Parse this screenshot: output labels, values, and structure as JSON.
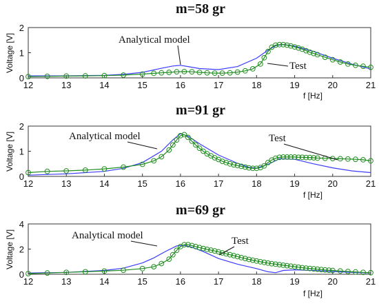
{
  "chart_data": [
    {
      "type": "line",
      "title": "m=58 gr",
      "xlabel": "f [Hz]",
      "ylabel": "Voltage [V]",
      "xlim": [
        12,
        21
      ],
      "ylim": [
        0,
        2
      ],
      "xticks": [
        12,
        13,
        14,
        15,
        16,
        17,
        18,
        19,
        20,
        21
      ],
      "yticks": [
        0,
        1,
        2
      ],
      "grid": false,
      "annotations": [
        {
          "text": "Analytical model",
          "series": "Analytical model",
          "at": [
            16.0,
            0.5
          ]
        },
        {
          "text": "Test",
          "series": "Test",
          "at": [
            18.5,
            0.45
          ]
        }
      ],
      "series": [
        {
          "name": "Analytical model",
          "color": "#3b3bff",
          "marker": "none",
          "x": [
            12.0,
            13.0,
            14.0,
            14.5,
            15.0,
            15.5,
            15.8,
            16.0,
            16.2,
            16.5,
            17.0,
            17.5,
            18.0,
            18.3,
            18.5,
            18.7,
            19.0,
            19.5,
            20.0,
            20.5,
            21.0
          ],
          "y": [
            0.08,
            0.08,
            0.1,
            0.14,
            0.22,
            0.38,
            0.47,
            0.5,
            0.45,
            0.37,
            0.33,
            0.45,
            0.78,
            1.1,
            1.28,
            1.33,
            1.26,
            1.05,
            0.78,
            0.55,
            0.35
          ]
        },
        {
          "name": "Test",
          "color": "#1f8c1f",
          "marker": "circle",
          "x": [
            12.0,
            12.5,
            13.0,
            13.5,
            14.0,
            14.5,
            15.0,
            15.3,
            15.5,
            15.7,
            15.9,
            16.1,
            16.3,
            16.5,
            16.7,
            16.9,
            17.1,
            17.3,
            17.5,
            17.7,
            17.9,
            18.1,
            18.2,
            18.3,
            18.4,
            18.5,
            18.6,
            18.7,
            18.8,
            18.9,
            19.0,
            19.1,
            19.2,
            19.3,
            19.4,
            19.5,
            19.6,
            19.8,
            20.0,
            20.2,
            20.4,
            20.6,
            20.8,
            21.0
          ],
          "y": [
            0.05,
            0.06,
            0.07,
            0.08,
            0.09,
            0.11,
            0.15,
            0.18,
            0.2,
            0.22,
            0.24,
            0.25,
            0.24,
            0.22,
            0.2,
            0.19,
            0.19,
            0.2,
            0.23,
            0.28,
            0.36,
            0.55,
            0.8,
            1.05,
            1.22,
            1.3,
            1.32,
            1.32,
            1.3,
            1.27,
            1.23,
            1.19,
            1.14,
            1.08,
            1.02,
            0.97,
            0.92,
            0.82,
            0.72,
            0.63,
            0.55,
            0.5,
            0.46,
            0.42
          ]
        }
      ]
    },
    {
      "type": "line",
      "title": "m=91 gr",
      "xlabel": "f [Hz]",
      "ylabel": "Voltage [V]",
      "xlim": [
        12,
        21
      ],
      "ylim": [
        0,
        2
      ],
      "xticks": [
        12,
        13,
        14,
        15,
        16,
        17,
        18,
        19,
        20,
        21
      ],
      "yticks": [
        0,
        1,
        2
      ],
      "grid": false,
      "annotations": [
        {
          "text": "Analytical model",
          "series": "Analytical model",
          "at": [
            15.6,
            1.2
          ]
        },
        {
          "text": "Test",
          "series": "Test",
          "at": [
            19.7,
            0.7
          ]
        }
      ],
      "series": [
        {
          "name": "Analytical model",
          "color": "#3b3bff",
          "marker": "none",
          "x": [
            12.0,
            13.0,
            14.0,
            14.5,
            15.0,
            15.5,
            15.8,
            16.0,
            16.2,
            16.5,
            17.0,
            17.5,
            17.8,
            18.0,
            18.3,
            18.6,
            19.0,
            19.5,
            20.0,
            20.5,
            21.0
          ],
          "y": [
            0.05,
            0.1,
            0.2,
            0.32,
            0.55,
            1.0,
            1.45,
            1.7,
            1.6,
            1.3,
            0.85,
            0.52,
            0.36,
            0.33,
            0.48,
            0.7,
            0.68,
            0.5,
            0.34,
            0.22,
            0.15
          ]
        },
        {
          "name": "Test",
          "color": "#1f8c1f",
          "marker": "circle",
          "x": [
            12.0,
            12.5,
            13.0,
            13.5,
            14.0,
            14.5,
            15.0,
            15.3,
            15.5,
            15.7,
            15.8,
            15.9,
            16.0,
            16.1,
            16.2,
            16.3,
            16.4,
            16.5,
            16.6,
            16.7,
            16.8,
            16.9,
            17.0,
            17.1,
            17.2,
            17.3,
            17.4,
            17.5,
            17.6,
            17.7,
            17.8,
            17.9,
            18.0,
            18.1,
            18.2,
            18.3,
            18.4,
            18.5,
            18.6,
            18.7,
            18.8,
            18.9,
            19.0,
            19.1,
            19.2,
            19.3,
            19.4,
            19.5,
            19.6,
            19.8,
            20.0,
            20.2,
            20.4,
            20.6,
            20.8,
            21.0
          ],
          "y": [
            0.15,
            0.2,
            0.22,
            0.25,
            0.3,
            0.37,
            0.48,
            0.62,
            0.78,
            1.05,
            1.25,
            1.45,
            1.62,
            1.66,
            1.55,
            1.4,
            1.25,
            1.12,
            1.0,
            0.9,
            0.82,
            0.74,
            0.67,
            0.6,
            0.55,
            0.5,
            0.46,
            0.43,
            0.4,
            0.37,
            0.34,
            0.32,
            0.32,
            0.35,
            0.42,
            0.55,
            0.65,
            0.72,
            0.76,
            0.77,
            0.77,
            0.77,
            0.77,
            0.76,
            0.76,
            0.75,
            0.75,
            0.74,
            0.73,
            0.72,
            0.71,
            0.7,
            0.69,
            0.68,
            0.66,
            0.62
          ]
        }
      ]
    },
    {
      "type": "line",
      "title": "m=69 gr",
      "xlabel": "f [Hz]",
      "ylabel": "Voltage [V]",
      "xlim": [
        12,
        21
      ],
      "ylim": [
        0,
        4
      ],
      "xticks": [
        12,
        13,
        14,
        15,
        16,
        17,
        18,
        19,
        20,
        21
      ],
      "yticks": [
        0,
        2,
        4
      ],
      "grid": false,
      "annotations": [
        {
          "text": "Analytical model",
          "series": "Analytical model",
          "at": [
            15.7,
            2.0
          ]
        },
        {
          "text": "Test",
          "series": "Test",
          "at": [
            17.7,
            1.4
          ]
        }
      ],
      "series": [
        {
          "name": "Analytical model",
          "color": "#3b3bff",
          "marker": "none",
          "x": [
            12.0,
            13.0,
            14.0,
            14.5,
            15.0,
            15.3,
            15.6,
            15.9,
            16.1,
            16.3,
            16.6,
            17.0,
            17.5,
            18.0,
            18.3,
            18.5,
            18.7,
            19.0,
            19.5,
            20.0,
            20.5,
            21.0
          ],
          "y": [
            0.1,
            0.15,
            0.3,
            0.48,
            0.9,
            1.3,
            1.8,
            2.25,
            2.3,
            2.15,
            1.8,
            1.25,
            0.8,
            0.45,
            0.2,
            0.12,
            0.3,
            0.35,
            0.3,
            0.22,
            0.15,
            0.1
          ]
        },
        {
          "name": "Test",
          "color": "#1f8c1f",
          "marker": "circle",
          "x": [
            12.0,
            12.5,
            13.0,
            13.5,
            14.0,
            14.5,
            15.0,
            15.3,
            15.5,
            15.7,
            15.8,
            15.9,
            16.0,
            16.1,
            16.2,
            16.3,
            16.4,
            16.5,
            16.6,
            16.7,
            16.8,
            16.9,
            17.0,
            17.1,
            17.2,
            17.3,
            17.4,
            17.5,
            17.6,
            17.7,
            17.8,
            17.9,
            18.0,
            18.1,
            18.2,
            18.3,
            18.4,
            18.5,
            18.6,
            18.7,
            18.8,
            18.9,
            19.0,
            19.1,
            19.2,
            19.3,
            19.4,
            19.5,
            19.6,
            19.7,
            19.8,
            19.9,
            20.0,
            20.2,
            20.4,
            20.6,
            20.8,
            21.0
          ],
          "y": [
            0.05,
            0.1,
            0.15,
            0.2,
            0.25,
            0.32,
            0.45,
            0.6,
            0.85,
            1.2,
            1.55,
            1.9,
            2.2,
            2.35,
            2.35,
            2.28,
            2.2,
            2.12,
            2.05,
            1.98,
            1.92,
            1.85,
            1.78,
            1.7,
            1.62,
            1.55,
            1.48,
            1.4,
            1.32,
            1.25,
            1.18,
            1.12,
            1.05,
            0.99,
            0.94,
            0.89,
            0.84,
            0.8,
            0.76,
            0.72,
            0.68,
            0.64,
            0.6,
            0.56,
            0.52,
            0.49,
            0.46,
            0.43,
            0.4,
            0.37,
            0.34,
            0.32,
            0.3,
            0.26,
            0.22,
            0.18,
            0.15,
            0.12
          ]
        }
      ]
    }
  ]
}
